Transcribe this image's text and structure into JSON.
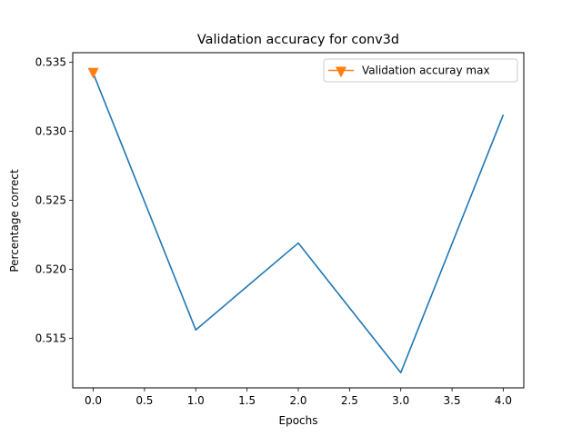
{
  "chart_data": {
    "type": "line",
    "title": "Validation accuracy for conv3d",
    "xlabel": "Epochs",
    "ylabel": "Percentage correct",
    "xlim": [
      -0.2,
      4.2
    ],
    "ylim": [
      0.5114,
      0.5357
    ],
    "xticks": [
      0.0,
      0.5,
      1.0,
      1.5,
      2.0,
      2.5,
      3.0,
      3.5,
      4.0
    ],
    "xtick_labels": [
      "0.0",
      "0.5",
      "1.0",
      "1.5",
      "2.0",
      "2.5",
      "3.0",
      "3.5",
      "4.0"
    ],
    "yticks": [
      0.515,
      0.52,
      0.525,
      0.53,
      0.535
    ],
    "ytick_labels": [
      "0.515",
      "0.520",
      "0.525",
      "0.530",
      "0.535"
    ],
    "grid": false,
    "legend_position": "top-right",
    "series": [
      {
        "name": "",
        "color": "#1f77b4",
        "marker": "none",
        "x": [
          0,
          1,
          2,
          3,
          4
        ],
        "y": [
          0.5342,
          0.5156,
          0.5219,
          0.5125,
          0.5312
        ]
      },
      {
        "name": "Validation accuray max",
        "color": "#ff7f0e",
        "marker": "triangle-down",
        "x": [
          0
        ],
        "y": [
          0.5342
        ]
      }
    ]
  }
}
